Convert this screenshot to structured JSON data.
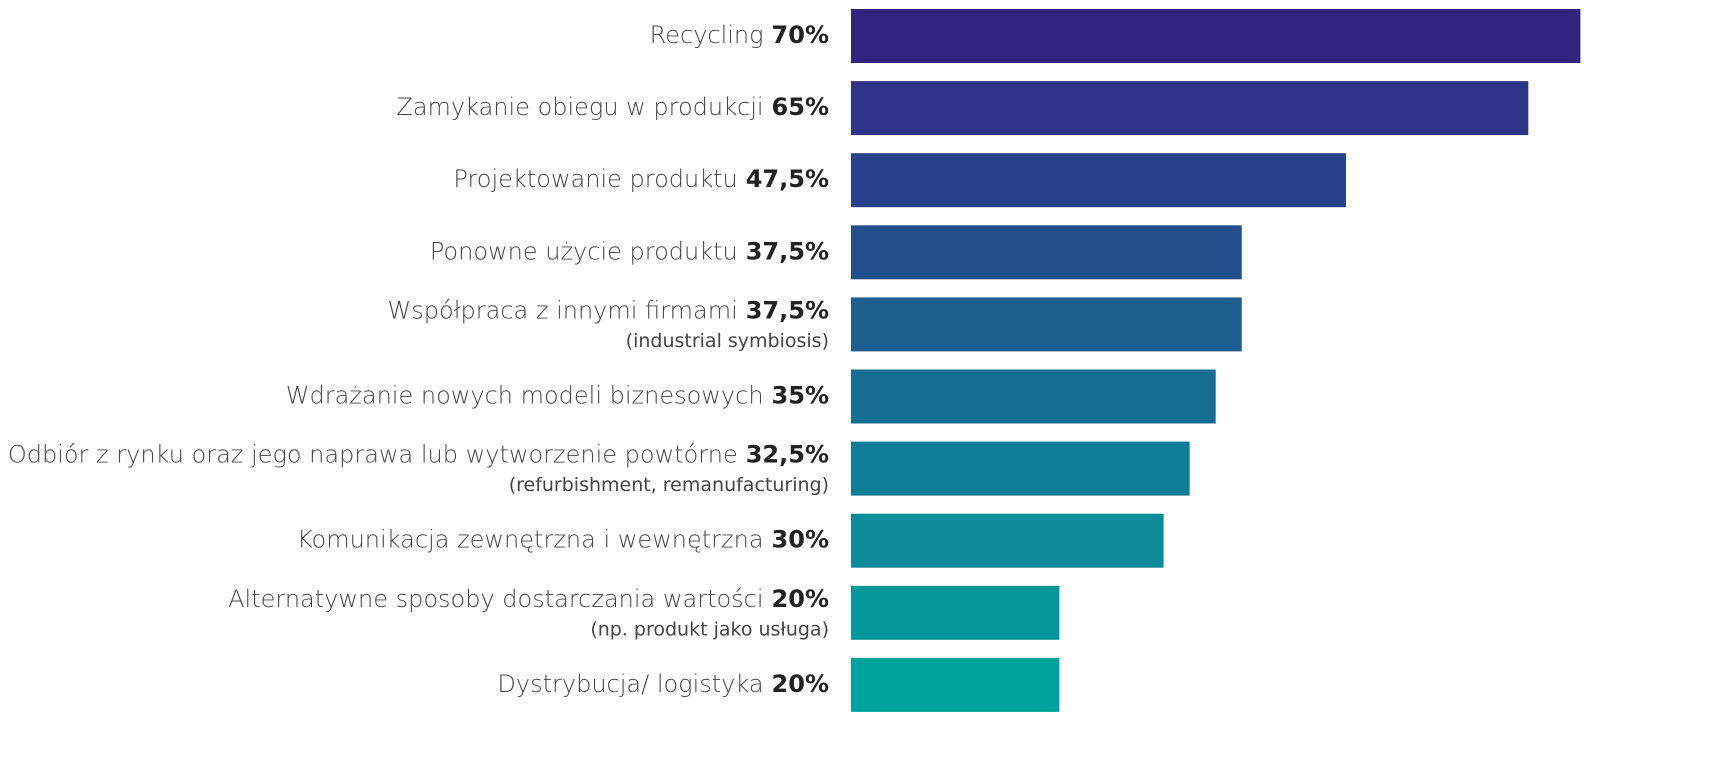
{
  "chart_data": {
    "type": "hbar",
    "categories": [
      "Recycling",
      "Zamykanie obiegu w produkcji",
      "Projektowanie produktu",
      "Ponowne użycie produktu",
      "Współpraca z innymi firmami",
      "Wdrażanie nowych modeli biznesowych",
      "Odbiór z rynku oraz jego naprawa lub wytworzenie powtórne",
      "Komunikacja zewnętrzna i wewnętrzna",
      "Alternatywne sposoby dostarczania wartości",
      "Dystrybucja/ logistyka"
    ],
    "sublabels": [
      null,
      null,
      null,
      null,
      "(industrial symbiosis)",
      null,
      "(refurbishment, remanufacturing)",
      null,
      "(np. produkt jako usługa)",
      null
    ],
    "values": [
      70,
      65,
      47.5,
      37.5,
      37.5,
      35,
      32.5,
      30,
      20,
      20
    ],
    "value_labels": [
      "70%",
      "65%",
      "47,5%",
      "37,5%",
      "37,5%",
      "35%",
      "32,5%",
      "30%",
      "20%",
      "20%"
    ],
    "colors": [
      "#32237f",
      "#2f3486",
      "#27428a",
      "#234f8c",
      "#1d5e8e",
      "#166d92",
      "#107d96",
      "#0b8c98",
      "#05989a",
      "#00a39b"
    ]
  }
}
